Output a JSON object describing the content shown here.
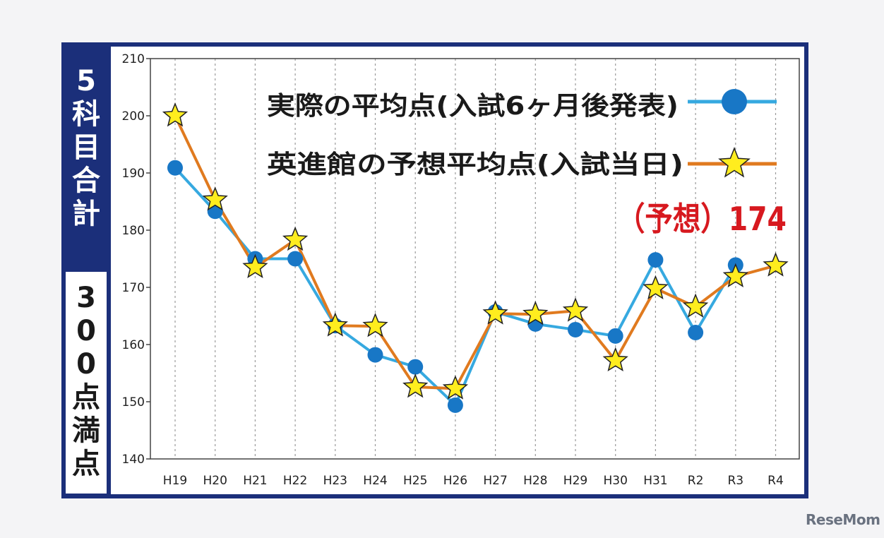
{
  "side_title": [
    "5",
    "科",
    "目",
    "合",
    "計"
  ],
  "side_subtitle": [
    "3",
    "0",
    "0",
    "点",
    "満",
    "点"
  ],
  "prediction_label": "（予想）174",
  "watermark": "ReseMom",
  "colors": {
    "frame": "#1b2f7a",
    "actual_line": "#36a9e0",
    "actual_marker": "#1877c6",
    "predicted_line": "#e07a1f",
    "star_fill": "#ffed1e",
    "prediction_text": "#d7191f"
  },
  "chart_data": {
    "type": "line",
    "categories": [
      "H19",
      "H20",
      "H21",
      "H22",
      "H23",
      "H24",
      "H25",
      "H26",
      "H27",
      "H28",
      "H29",
      "H30",
      "H31",
      "R2",
      "R3",
      "R4"
    ],
    "ylim": [
      140,
      210
    ],
    "yticks": [
      140,
      150,
      160,
      170,
      180,
      190,
      200,
      210
    ],
    "grid": "vertical-dashed",
    "legend_placement": "top-right",
    "series": [
      {
        "name": "実際の平均点(入試6ヶ月後発表)",
        "marker": "circle",
        "values": [
          190.9,
          183.3,
          175.0,
          175.0,
          163.3,
          158.2,
          156.1,
          149.4,
          165.7,
          163.6,
          162.6,
          161.5,
          174.8,
          162.1,
          173.9,
          null
        ]
      },
      {
        "name": "英進館の予想平均点(入試当日)",
        "marker": "star",
        "values": [
          200.0,
          185.3,
          173.5,
          178.3,
          163.3,
          163.2,
          152.6,
          152.3,
          165.4,
          165.3,
          165.9,
          157.2,
          169.8,
          166.6,
          171.9,
          173.8
        ]
      }
    ]
  }
}
